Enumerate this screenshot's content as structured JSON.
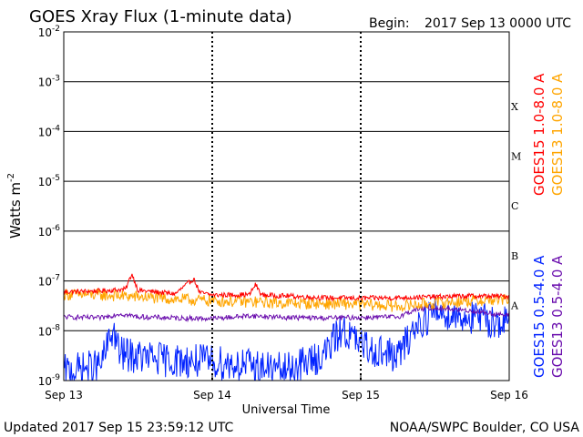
{
  "header": {
    "title": "GOES Xray Flux (1-minute data)",
    "begin_label": "Begin:",
    "begin_value": "2017 Sep 13 0000 UTC"
  },
  "footer": {
    "updated": "Updated 2017 Sep 15 23:59:12 UTC",
    "credit": "NOAA/SWPC Boulder, CO USA"
  },
  "chart_data": {
    "type": "line",
    "title": "GOES Xray Flux (1-minute data)",
    "xlabel": "Universal Time",
    "ylabel": "Watts m",
    "ylabel_sup": "-2",
    "yscale": "log",
    "ylim": [
      1e-09,
      0.01
    ],
    "xlim": [
      "2017-09-13",
      "2017-09-16"
    ],
    "x_ticks": [
      {
        "label": "Sep 13",
        "value": "2017-09-13"
      },
      {
        "label": "Sep 14",
        "value": "2017-09-14"
      },
      {
        "label": "Sep 15",
        "value": "2017-09-15"
      },
      {
        "label": "Sep 16",
        "value": "2017-09-16"
      }
    ],
    "y_ticks": [
      {
        "base": "10",
        "exp": "-9",
        "value": 1e-09
      },
      {
        "base": "10",
        "exp": "-8",
        "value": 1e-08
      },
      {
        "base": "10",
        "exp": "-7",
        "value": 1e-07
      },
      {
        "base": "10",
        "exp": "-6",
        "value": 1e-06
      },
      {
        "base": "10",
        "exp": "-5",
        "value": 1e-05
      },
      {
        "base": "10",
        "exp": "-4",
        "value": 0.0001
      },
      {
        "base": "10",
        "exp": "-3",
        "value": 0.001
      },
      {
        "base": "10",
        "exp": "-2",
        "value": 0.01
      }
    ],
    "flare_classes": [
      {
        "label": "A",
        "value": 3.2e-08
      },
      {
        "label": "B",
        "value": 3.2e-07
      },
      {
        "label": "C",
        "value": 3.2e-06
      },
      {
        "label": "M",
        "value": 3.2e-05
      },
      {
        "label": "X",
        "value": 0.00032
      }
    ],
    "series": [
      {
        "name": "GOES15 1.0-8.0 A",
        "color": "#ff0000",
        "spread": 0.05,
        "points": [
          [
            "2017-09-13T00:00",
            6e-08
          ],
          [
            "2017-09-13T06:00",
            6.3e-08
          ],
          [
            "2017-09-13T10:00",
            6.8e-08
          ],
          [
            "2017-09-13T11:00",
            1.4e-07
          ],
          [
            "2017-09-13T12:00",
            6.5e-08
          ],
          [
            "2017-09-13T18:00",
            5.5e-08
          ],
          [
            "2017-09-13T21:00",
            1.1e-07
          ],
          [
            "2017-09-13T22:00",
            5.8e-08
          ],
          [
            "2017-09-14T00:00",
            5.2e-08
          ],
          [
            "2017-09-14T06:00",
            5.3e-08
          ],
          [
            "2017-09-14T07:00",
            8.5e-08
          ],
          [
            "2017-09-14T08:00",
            5.2e-08
          ],
          [
            "2017-09-14T12:00",
            5e-08
          ],
          [
            "2017-09-14T18:00",
            4.6e-08
          ],
          [
            "2017-09-15T00:00",
            4.5e-08
          ],
          [
            "2017-09-15T06:00",
            4.6e-08
          ],
          [
            "2017-09-15T12:00",
            4.8e-08
          ],
          [
            "2017-09-15T18:00",
            5e-08
          ],
          [
            "2017-09-16T00:00",
            4.9e-08
          ]
        ]
      },
      {
        "name": "GOES13 1.0-8.0 A",
        "color": "#ffa500",
        "spread": 0.12,
        "points": [
          [
            "2017-09-13T00:00",
            5.4e-08
          ],
          [
            "2017-09-13T06:00",
            5.2e-08
          ],
          [
            "2017-09-13T12:00",
            4.8e-08
          ],
          [
            "2017-09-13T18:00",
            4.3e-08
          ],
          [
            "2017-09-14T00:00",
            4e-08
          ],
          [
            "2017-09-14T06:00",
            3.8e-08
          ],
          [
            "2017-09-14T12:00",
            3.6e-08
          ],
          [
            "2017-09-14T18:00",
            3.5e-08
          ],
          [
            "2017-09-15T00:00",
            3.4e-08
          ],
          [
            "2017-09-15T06:00",
            3.1e-08
          ],
          [
            "2017-09-15T12:00",
            3.6e-08
          ],
          [
            "2017-09-15T18:00",
            4e-08
          ],
          [
            "2017-09-16T00:00",
            4.2e-08
          ]
        ]
      },
      {
        "name": "GOES13 0.5-4.0 A",
        "color": "#6a0dad",
        "spread": 0.05,
        "points": [
          [
            "2017-09-13T00:00",
            1.9e-08
          ],
          [
            "2017-09-13T06:00",
            1.8e-08
          ],
          [
            "2017-09-13T09:00",
            2.2e-08
          ],
          [
            "2017-09-13T12:00",
            1.9e-08
          ],
          [
            "2017-09-13T18:00",
            1.8e-08
          ],
          [
            "2017-09-14T00:00",
            1.75e-08
          ],
          [
            "2017-09-14T06:00",
            2e-08
          ],
          [
            "2017-09-14T12:00",
            1.85e-08
          ],
          [
            "2017-09-14T18:00",
            1.8e-08
          ],
          [
            "2017-09-15T00:00",
            1.85e-08
          ],
          [
            "2017-09-15T06:00",
            1.9e-08
          ],
          [
            "2017-09-15T09:00",
            2.7e-08
          ],
          [
            "2017-09-15T12:00",
            2.9e-08
          ],
          [
            "2017-09-15T18:00",
            2.5e-08
          ],
          [
            "2017-09-16T00:00",
            2e-08
          ]
        ]
      },
      {
        "name": "GOES15 0.5-4.0 A",
        "color": "#0022ff",
        "spread": 0.35,
        "points": [
          [
            "2017-09-13T00:00",
            1.5e-09
          ],
          [
            "2017-09-13T06:00",
            2e-09
          ],
          [
            "2017-09-13T08:00",
            1.1e-08
          ],
          [
            "2017-09-13T09:00",
            3.5e-09
          ],
          [
            "2017-09-13T12:00",
            3e-09
          ],
          [
            "2017-09-13T18:00",
            2.5e-09
          ],
          [
            "2017-09-14T00:00",
            2.4e-09
          ],
          [
            "2017-09-14T06:00",
            2e-09
          ],
          [
            "2017-09-14T12:00",
            1.6e-09
          ],
          [
            "2017-09-14T18:00",
            3.2e-09
          ],
          [
            "2017-09-14T21:00",
            1.1e-08
          ],
          [
            "2017-09-15T00:00",
            5e-09
          ],
          [
            "2017-09-15T06:00",
            3e-09
          ],
          [
            "2017-09-15T09:00",
            1.3e-08
          ],
          [
            "2017-09-15T12:00",
            2.4e-08
          ],
          [
            "2017-09-15T18:00",
            1.8e-08
          ],
          [
            "2017-09-16T00:00",
            1.4e-08
          ]
        ]
      }
    ],
    "legend_right": [
      {
        "label": "GOES15 1.0-8.0 A",
        "color": "#ff0000"
      },
      {
        "label": "GOES13 1.0-8.0 A",
        "color": "#ffa500"
      },
      {
        "label": "GOES15 0.5-4.0 A",
        "color": "#0022ff"
      },
      {
        "label": "GOES13 0.5-4.0 A",
        "color": "#6a0dad"
      }
    ]
  }
}
